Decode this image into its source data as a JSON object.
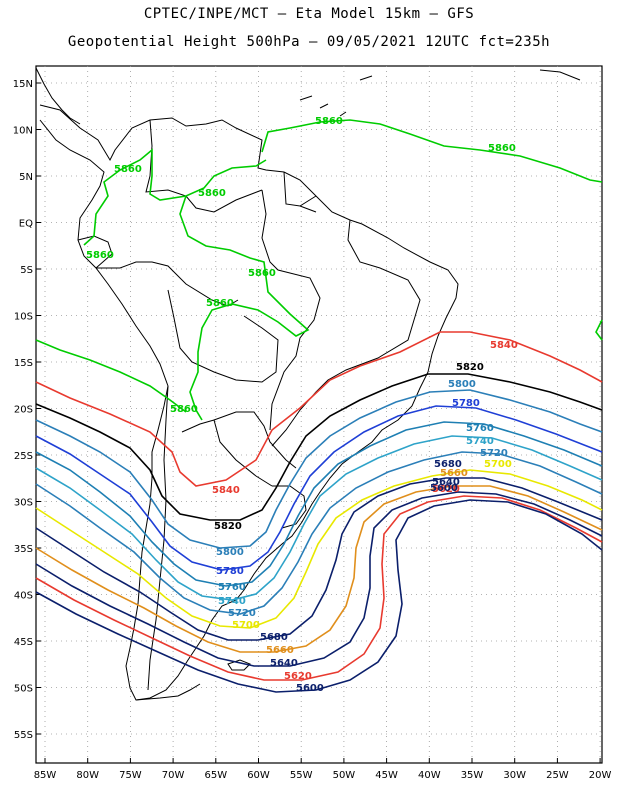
{
  "header": {
    "line1": "CPTEC/INPE/MCT –  Eta Model 15km – GFS",
    "line2": "Geopotential Height 500hPa – 09/05/2021 12UTC fct=235h"
  },
  "axes": {
    "lat_labels": [
      "15N",
      "10N",
      "5N",
      "EQ",
      "5S",
      "10S",
      "15S",
      "20S",
      "25S",
      "30S",
      "35S",
      "40S",
      "45S",
      "50S",
      "55S"
    ],
    "lon_labels": [
      "85W",
      "80W",
      "75W",
      "70W",
      "65W",
      "60W",
      "55W",
      "50W",
      "45W",
      "40W",
      "35W",
      "30W",
      "25W",
      "20W"
    ],
    "grid": "dotted"
  },
  "contours": [
    {
      "value": "5860",
      "color": "#00cc00"
    },
    {
      "value": "5840",
      "color": "#e83a2f"
    },
    {
      "value": "5820",
      "color": "#000000"
    },
    {
      "value": "5800",
      "color": "#2b7fb8"
    },
    {
      "value": "5780",
      "color": "#1f3fd6"
    },
    {
      "value": "5760",
      "color": "#1e7fb3"
    },
    {
      "value": "5740",
      "color": "#2ea3c9"
    },
    {
      "value": "5720",
      "color": "#2b7fb8"
    },
    {
      "value": "5700",
      "color": "#e8e800"
    },
    {
      "value": "5680",
      "color": "#0b1f6b"
    },
    {
      "value": "5660",
      "color": "#e08f1c"
    },
    {
      "value": "5640",
      "color": "#0b1f6b"
    },
    {
      "value": "5620",
      "color": "#e83a2f"
    },
    {
      "value": "5600",
      "color": "#0b1f6b"
    }
  ],
  "labels": {
    "l5860a": "5860",
    "l5860b": "5860",
    "l5860c": "5860",
    "l5860d": "5860",
    "l5860e": "5860",
    "l5860f": "5860",
    "l5860g": "5860",
    "l5860h": "5860",
    "l5840a": "5840",
    "l5840b": "5840",
    "l5820a": "5820",
    "l5820b": "5820",
    "l5800a": "5800",
    "l5800b": "5800",
    "l5780a": "5780",
    "l5780b": "5780",
    "l5760a": "5760",
    "l5760b": "5760",
    "l5740a": "5740",
    "l5740b": "5740",
    "l5720a": "5720",
    "l5720b": "5720",
    "l5700a": "5700",
    "l5700b": "5700",
    "l5680a": "5680",
    "l5680b": "5680",
    "l5660a": "5660",
    "l5660b": "5660",
    "l5640a": "5640",
    "l5640b": "5640",
    "l5620a": "5620",
    "l5620b": "5620",
    "l5600a": "5600",
    "l5600b": "5600"
  }
}
